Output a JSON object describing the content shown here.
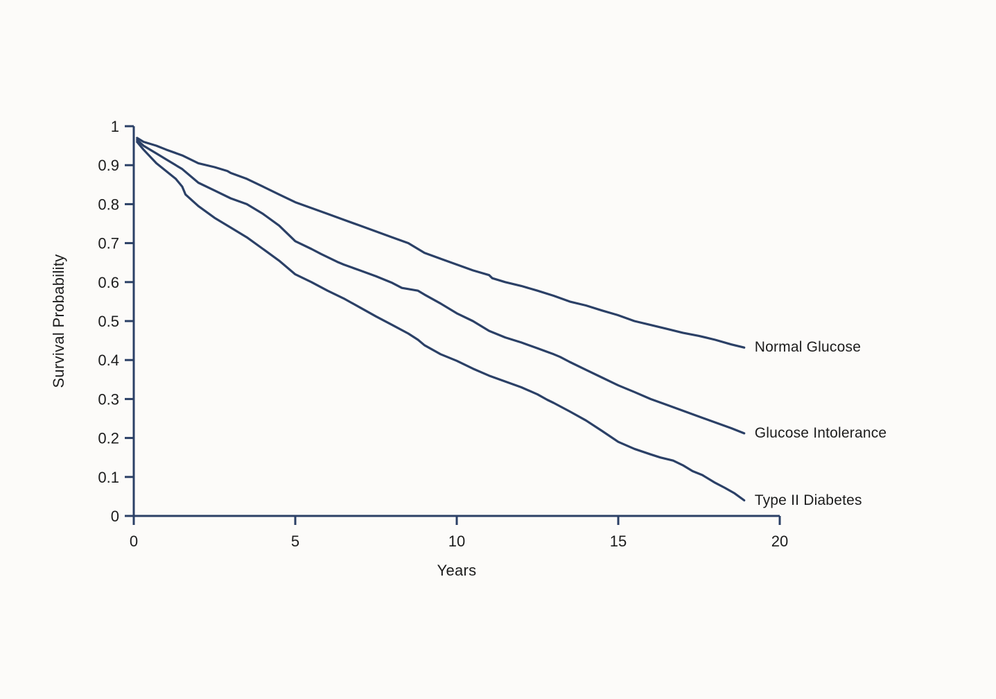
{
  "figure": {
    "background_color": "#fcfbf9",
    "line_color": "#2b4066",
    "text_color": "#1c1c1c"
  },
  "chart_data": {
    "type": "line",
    "title": "",
    "xlabel": "Years",
    "ylabel": "Survival Probability",
    "xlim": [
      0,
      20
    ],
    "ylim": [
      0,
      1
    ],
    "grid": false,
    "legend_position": "curve-end-labels-right",
    "x_ticks": [
      {
        "v": 0,
        "label": "0"
      },
      {
        "v": 5,
        "label": "5"
      },
      {
        "v": 10,
        "label": "10"
      },
      {
        "v": 15,
        "label": "15"
      },
      {
        "v": 20,
        "label": "20"
      }
    ],
    "y_ticks": [
      {
        "v": 0,
        "label": "0"
      },
      {
        "v": 0.1,
        "label": "0.1"
      },
      {
        "v": 0.2,
        "label": "0.2"
      },
      {
        "v": 0.3,
        "label": "0.3"
      },
      {
        "v": 0.4,
        "label": "0.4"
      },
      {
        "v": 0.5,
        "label": "0.5"
      },
      {
        "v": 0.6,
        "label": "0.6"
      },
      {
        "v": 0.7,
        "label": "0.7"
      },
      {
        "v": 0.8,
        "label": "0.8"
      },
      {
        "v": 0.9,
        "label": "0.9"
      },
      {
        "v": 1,
        "label": "1"
      }
    ],
    "series": [
      {
        "name": "Normal Glucose",
        "x": [
          0.1,
          0.3,
          0.7,
          1.0,
          1.5,
          2.0,
          2.5,
          2.9,
          3.0,
          3.5,
          4.0,
          4.5,
          5.0,
          5.5,
          6.0,
          6.5,
          7.0,
          7.5,
          8.0,
          8.5,
          9.0,
          9.5,
          10.0,
          10.5,
          11.0,
          11.1,
          11.5,
          12.0,
          12.5,
          13.0,
          13.5,
          14.0,
          14.5,
          15.0,
          15.5,
          16.0,
          16.5,
          17.0,
          17.5,
          18.0,
          18.5,
          18.9
        ],
        "y": [
          0.97,
          0.96,
          0.95,
          0.94,
          0.925,
          0.905,
          0.895,
          0.885,
          0.88,
          0.865,
          0.845,
          0.825,
          0.805,
          0.79,
          0.775,
          0.76,
          0.745,
          0.73,
          0.715,
          0.7,
          0.675,
          0.66,
          0.645,
          0.63,
          0.618,
          0.61,
          0.6,
          0.59,
          0.578,
          0.565,
          0.55,
          0.54,
          0.527,
          0.515,
          0.5,
          0.49,
          0.48,
          0.47,
          0.462,
          0.452,
          0.44,
          0.432
        ]
      },
      {
        "name": "Glucose Intolerance",
        "x": [
          0.1,
          0.3,
          0.7,
          1.0,
          1.5,
          2.0,
          2.5,
          3.0,
          3.5,
          4.0,
          4.5,
          5.0,
          5.5,
          5.8,
          6.1,
          6.3,
          6.5,
          7.0,
          7.5,
          8.0,
          8.3,
          8.8,
          9.0,
          9.5,
          10.0,
          10.5,
          11.0,
          11.5,
          12.0,
          12.5,
          13.0,
          13.2,
          13.5,
          14.0,
          14.5,
          15.0,
          15.5,
          16.0,
          16.5,
          17.0,
          17.5,
          18.0,
          18.5,
          18.9
        ],
        "y": [
          0.965,
          0.95,
          0.93,
          0.915,
          0.89,
          0.855,
          0.835,
          0.815,
          0.8,
          0.775,
          0.745,
          0.705,
          0.685,
          0.672,
          0.66,
          0.652,
          0.645,
          0.63,
          0.615,
          0.598,
          0.585,
          0.578,
          0.568,
          0.545,
          0.52,
          0.5,
          0.475,
          0.458,
          0.445,
          0.43,
          0.415,
          0.408,
          0.395,
          0.375,
          0.355,
          0.335,
          0.318,
          0.3,
          0.285,
          0.27,
          0.255,
          0.24,
          0.225,
          0.212
        ]
      },
      {
        "name": "Type II Diabetes",
        "x": [
          0.1,
          0.3,
          0.7,
          1.0,
          1.3,
          1.5,
          1.6,
          1.8,
          2.0,
          2.5,
          3.0,
          3.3,
          3.5,
          4.0,
          4.5,
          5.0,
          5.5,
          6.0,
          6.5,
          7.0,
          7.5,
          8.0,
          8.5,
          8.8,
          9.0,
          9.5,
          10.0,
          10.5,
          11.0,
          11.5,
          12.0,
          12.5,
          12.8,
          13.0,
          13.5,
          14.0,
          14.5,
          15.0,
          15.5,
          16.0,
          16.3,
          16.7,
          17.0,
          17.3,
          17.6,
          18.0,
          18.3,
          18.6,
          18.9
        ],
        "y": [
          0.96,
          0.94,
          0.905,
          0.885,
          0.865,
          0.845,
          0.825,
          0.81,
          0.795,
          0.765,
          0.74,
          0.725,
          0.715,
          0.685,
          0.655,
          0.62,
          0.6,
          0.578,
          0.558,
          0.535,
          0.512,
          0.49,
          0.468,
          0.452,
          0.438,
          0.415,
          0.398,
          0.378,
          0.36,
          0.345,
          0.33,
          0.312,
          0.298,
          0.29,
          0.268,
          0.245,
          0.218,
          0.19,
          0.172,
          0.158,
          0.15,
          0.142,
          0.13,
          0.115,
          0.105,
          0.085,
          0.072,
          0.058,
          0.04
        ]
      }
    ]
  }
}
